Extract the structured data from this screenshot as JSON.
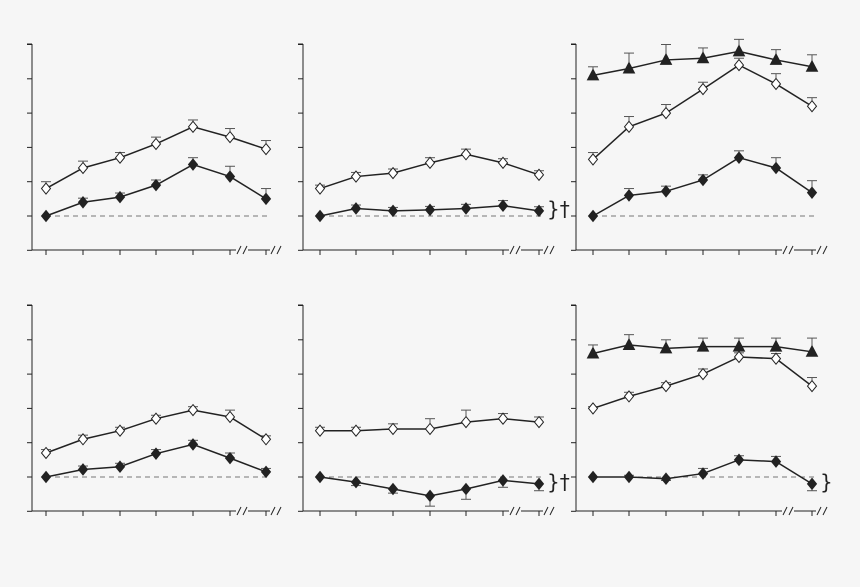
{
  "colors": {
    "background": "#f6f6f6",
    "axis": "#222222",
    "line": "#222222",
    "whisker": "#555555",
    "baseline": "#777777",
    "open_marker_fill": "#ffffff"
  },
  "chart_data": [
    {
      "type": "line",
      "panel": "top-left",
      "x": [
        1,
        2,
        3,
        4,
        5,
        6,
        7
      ],
      "ylim": [
        -1,
        6
      ],
      "series": [
        {
          "marker": "open-diamond",
          "values": [
            0.8,
            1.4,
            1.7,
            2.1,
            2.6,
            2.3,
            1.95
          ],
          "errors": [
            0.2,
            0.2,
            0.15,
            0.2,
            0.2,
            0.25,
            0.25
          ]
        },
        {
          "marker": "filled-diamond",
          "values": [
            0,
            0.4,
            0.55,
            0.9,
            1.5,
            1.15,
            0.5
          ],
          "errors": [
            0,
            0.12,
            0.12,
            0.15,
            0.2,
            0.3,
            0.3
          ]
        }
      ],
      "baseline": 0,
      "annotation": ""
    },
    {
      "type": "line",
      "panel": "top-middle",
      "x": [
        1,
        2,
        3,
        4,
        5,
        6,
        7
      ],
      "ylim": [
        -1,
        6
      ],
      "series": [
        {
          "marker": "open-diamond",
          "values": [
            0.8,
            1.15,
            1.25,
            1.55,
            1.8,
            1.55,
            1.2
          ],
          "errors": [
            0.1,
            0.12,
            0.12,
            0.15,
            0.15,
            0.12,
            0.12
          ]
        },
        {
          "marker": "filled-diamond",
          "values": [
            0,
            0.22,
            0.15,
            0.18,
            0.22,
            0.3,
            0.15
          ],
          "errors": [
            0,
            0.1,
            0.1,
            0.1,
            0.12,
            0.15,
            0.12
          ]
        }
      ],
      "baseline": 0,
      "annotation": "}†"
    },
    {
      "type": "line",
      "panel": "top-right",
      "x": [
        1,
        2,
        3,
        4,
        5,
        6,
        7
      ],
      "ylim": [
        -1,
        6
      ],
      "series": [
        {
          "marker": "filled-triangle",
          "values": [
            4.1,
            4.3,
            4.55,
            4.6,
            4.8,
            4.55,
            4.35
          ],
          "errors": [
            0.25,
            0.45,
            0.45,
            0.3,
            0.35,
            0.3,
            0.35
          ]
        },
        {
          "marker": "open-diamond",
          "values": [
            1.65,
            2.6,
            3.0,
            3.7,
            4.4,
            3.85,
            3.2
          ],
          "errors": [
            0.2,
            0.3,
            0.25,
            0.2,
            0.2,
            0.3,
            0.25
          ]
        },
        {
          "marker": "filled-diamond",
          "values": [
            0,
            0.6,
            0.72,
            1.05,
            1.7,
            1.4,
            0.68
          ],
          "errors": [
            0,
            0.2,
            0.15,
            0.15,
            0.2,
            0.3,
            0.35
          ]
        }
      ],
      "baseline": 0,
      "annotation": ""
    },
    {
      "type": "line",
      "panel": "bottom-left",
      "x": [
        1,
        2,
        3,
        4,
        5,
        6,
        7
      ],
      "ylim": [
        -1,
        6
      ],
      "series": [
        {
          "marker": "open-diamond",
          "values": [
            0.7,
            1.1,
            1.35,
            1.7,
            1.95,
            1.75,
            1.1
          ],
          "errors": [
            0.1,
            0.12,
            0.1,
            0.1,
            0.1,
            0.2,
            0.1
          ]
        },
        {
          "marker": "filled-diamond",
          "values": [
            0,
            0.22,
            0.3,
            0.68,
            0.95,
            0.55,
            0.15
          ],
          "errors": [
            0,
            0.1,
            0.1,
            0.12,
            0.12,
            0.15,
            0.1
          ]
        }
      ],
      "baseline": 0,
      "annotation": ""
    },
    {
      "type": "line",
      "panel": "bottom-middle",
      "x": [
        1,
        2,
        3,
        4,
        5,
        6,
        7
      ],
      "ylim": [
        -1,
        6
      ],
      "series": [
        {
          "marker": "open-diamond",
          "values": [
            1.35,
            1.35,
            1.4,
            1.4,
            1.6,
            1.7,
            1.6
          ],
          "errors": [
            0.1,
            0.1,
            0.15,
            0.3,
            0.35,
            0.15,
            0.15
          ]
        },
        {
          "marker": "filled-diamond",
          "values": [
            0,
            -0.15,
            -0.35,
            -0.55,
            -0.35,
            -0.1,
            -0.2
          ],
          "errors": [
            0,
            0.1,
            0.12,
            0.3,
            0.3,
            0.2,
            0.2
          ]
        }
      ],
      "baseline": 0,
      "annotation": "}†"
    },
    {
      "type": "line",
      "panel": "bottom-right",
      "x": [
        1,
        2,
        3,
        4,
        5,
        6,
        7
      ],
      "ylim": [
        -1,
        6
      ],
      "series": [
        {
          "marker": "filled-triangle",
          "values": [
            3.6,
            3.85,
            3.75,
            3.8,
            3.8,
            3.8,
            3.65
          ],
          "errors": [
            0.25,
            0.3,
            0.25,
            0.25,
            0.25,
            0.25,
            0.4
          ]
        },
        {
          "marker": "open-diamond",
          "values": [
            2.0,
            2.35,
            2.65,
            3.0,
            3.5,
            3.45,
            2.65
          ],
          "errors": [
            0.05,
            0.12,
            0.1,
            0.15,
            0.12,
            0.15,
            0.25
          ]
        },
        {
          "marker": "filled-diamond",
          "values": [
            0,
            0,
            -0.05,
            0.1,
            0.5,
            0.45,
            -0.2
          ],
          "errors": [
            0,
            0.05,
            0.05,
            0.15,
            0.12,
            0.15,
            0.2
          ]
        }
      ],
      "baseline": 0,
      "annotation": "}"
    }
  ]
}
